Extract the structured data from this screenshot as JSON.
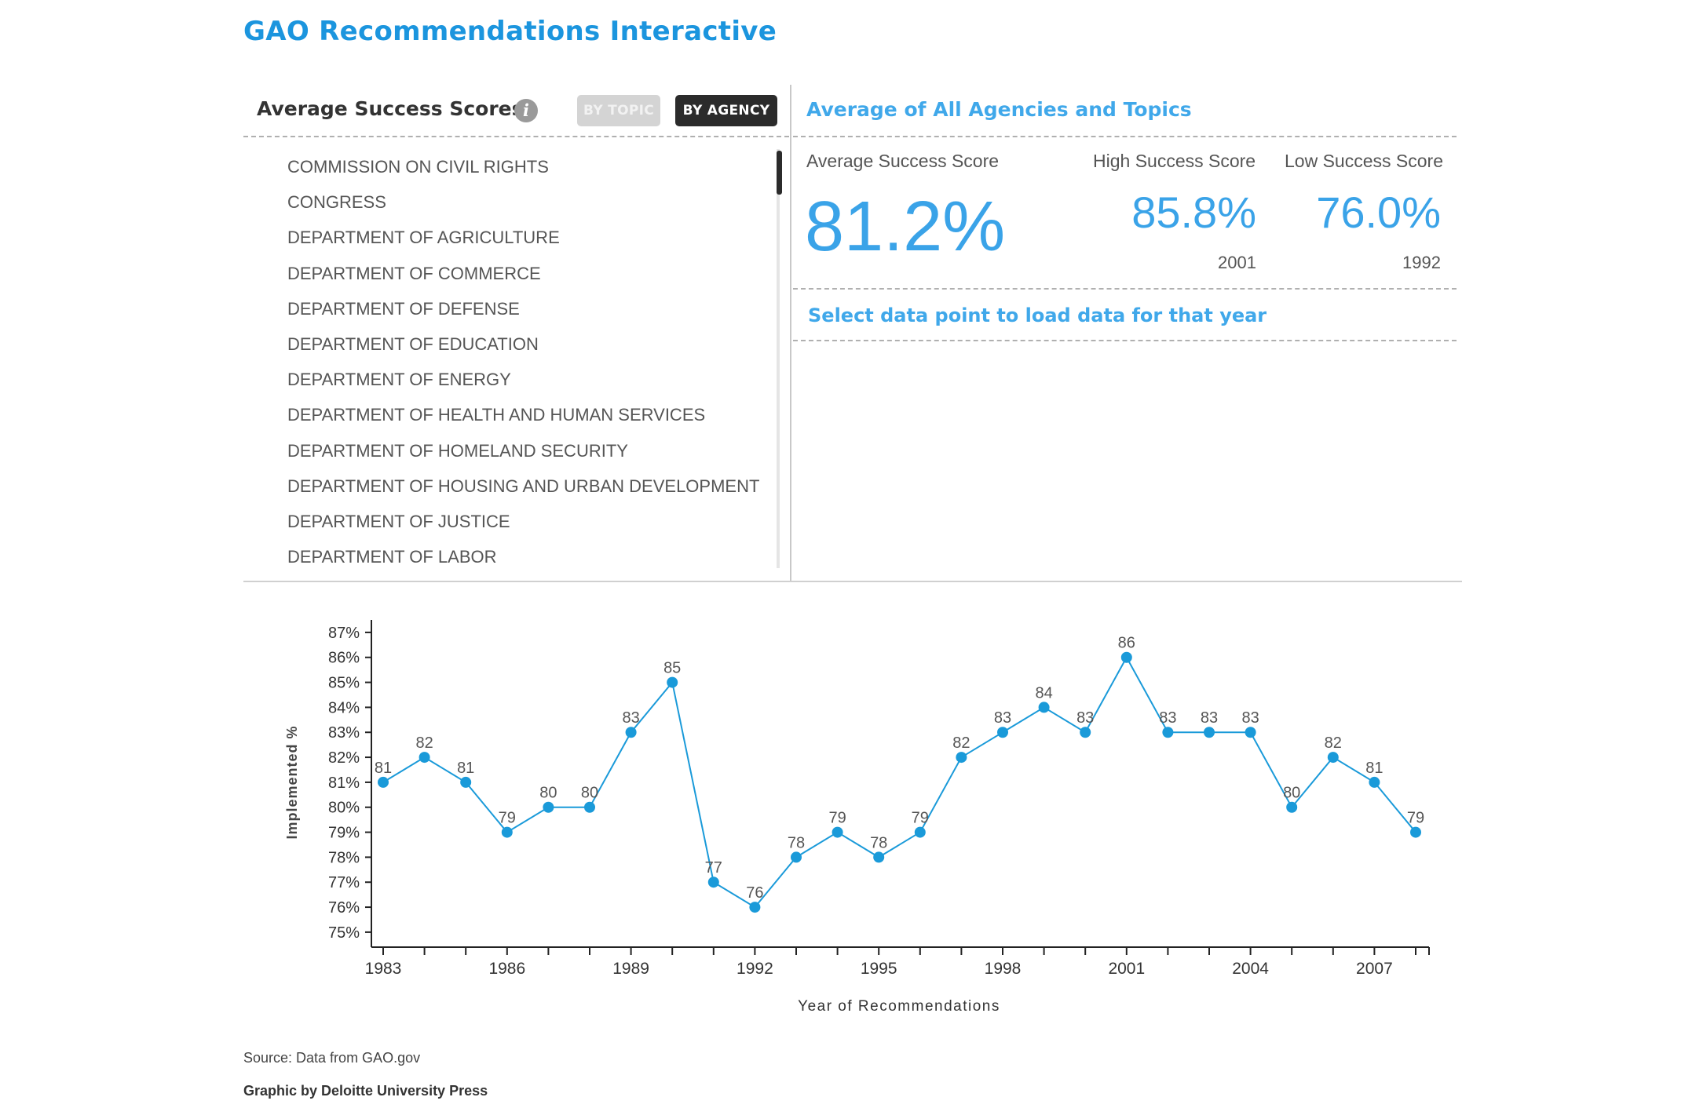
{
  "app_title": "GAO Recommendations Interactive",
  "left_panel": {
    "title": "Average Success Scores",
    "info_icon": "i",
    "toggle": {
      "by_topic": "BY TOPIC",
      "by_agency": "BY AGENCY",
      "selected": "BY AGENCY"
    },
    "agencies": [
      "COMMISSION ON CIVIL RIGHTS",
      "CONGRESS",
      "DEPARTMENT OF AGRICULTURE",
      "DEPARTMENT OF COMMERCE",
      "DEPARTMENT OF DEFENSE",
      "DEPARTMENT OF EDUCATION",
      "DEPARTMENT OF ENERGY",
      "DEPARTMENT OF HEALTH AND HUMAN SERVICES",
      "DEPARTMENT OF HOMELAND SECURITY",
      "DEPARTMENT OF HOUSING AND URBAN DEVELOPMENT",
      "DEPARTMENT OF JUSTICE",
      "DEPARTMENT OF LABOR"
    ]
  },
  "right_panel": {
    "title": "Average of All Agencies and Topics",
    "average_label": "Average Success Score",
    "average_value": "81.2%",
    "high_label": "High Success Score",
    "high_value": "85.8%",
    "high_year": "2001",
    "low_label": "Low Success Score",
    "low_value": "76.0%",
    "low_year": "1992",
    "hint": "Select data point to load data for that year"
  },
  "chart_data": {
    "type": "line",
    "x": [
      1983,
      1984,
      1985,
      1986,
      1987,
      1988,
      1989,
      1990,
      1991,
      1992,
      1993,
      1994,
      1995,
      1996,
      1997,
      1998,
      1999,
      2000,
      2001,
      2002,
      2003,
      2004,
      2005,
      2006,
      2007,
      2008
    ],
    "values": [
      81,
      82,
      81,
      79,
      80,
      80,
      83,
      85,
      77,
      76,
      78,
      79,
      78,
      79,
      82,
      83,
      84,
      83,
      86,
      83,
      83,
      83,
      80,
      82,
      81,
      79
    ],
    "data_labels": [
      "81",
      "82",
      "81",
      "79",
      "80",
      "80",
      "83",
      "85",
      "77",
      "76",
      "78",
      "79",
      "78",
      "79",
      "82",
      "83",
      "84",
      "83",
      "86",
      "83",
      "83",
      "83",
      "80",
      "82",
      "81",
      "79"
    ],
    "x_ticks": [
      "1983",
      "1986",
      "1989",
      "1992",
      "1995",
      "1998",
      "2001",
      "2004",
      "2007"
    ],
    "y_ticks": [
      "75%",
      "76%",
      "77%",
      "78%",
      "79%",
      "80%",
      "81%",
      "82%",
      "83%",
      "84%",
      "85%",
      "86%",
      "87%"
    ],
    "xlabel": "Year of Recommendations",
    "ylabel": "Implemented %",
    "ylim": [
      74.4,
      87.5
    ],
    "xlim": [
      1983,
      2008
    ],
    "grid": false,
    "color": "#1a9ad9"
  },
  "footer": {
    "source": "Source: Data from GAO.gov",
    "credit": "Graphic by Deloitte University Press"
  }
}
